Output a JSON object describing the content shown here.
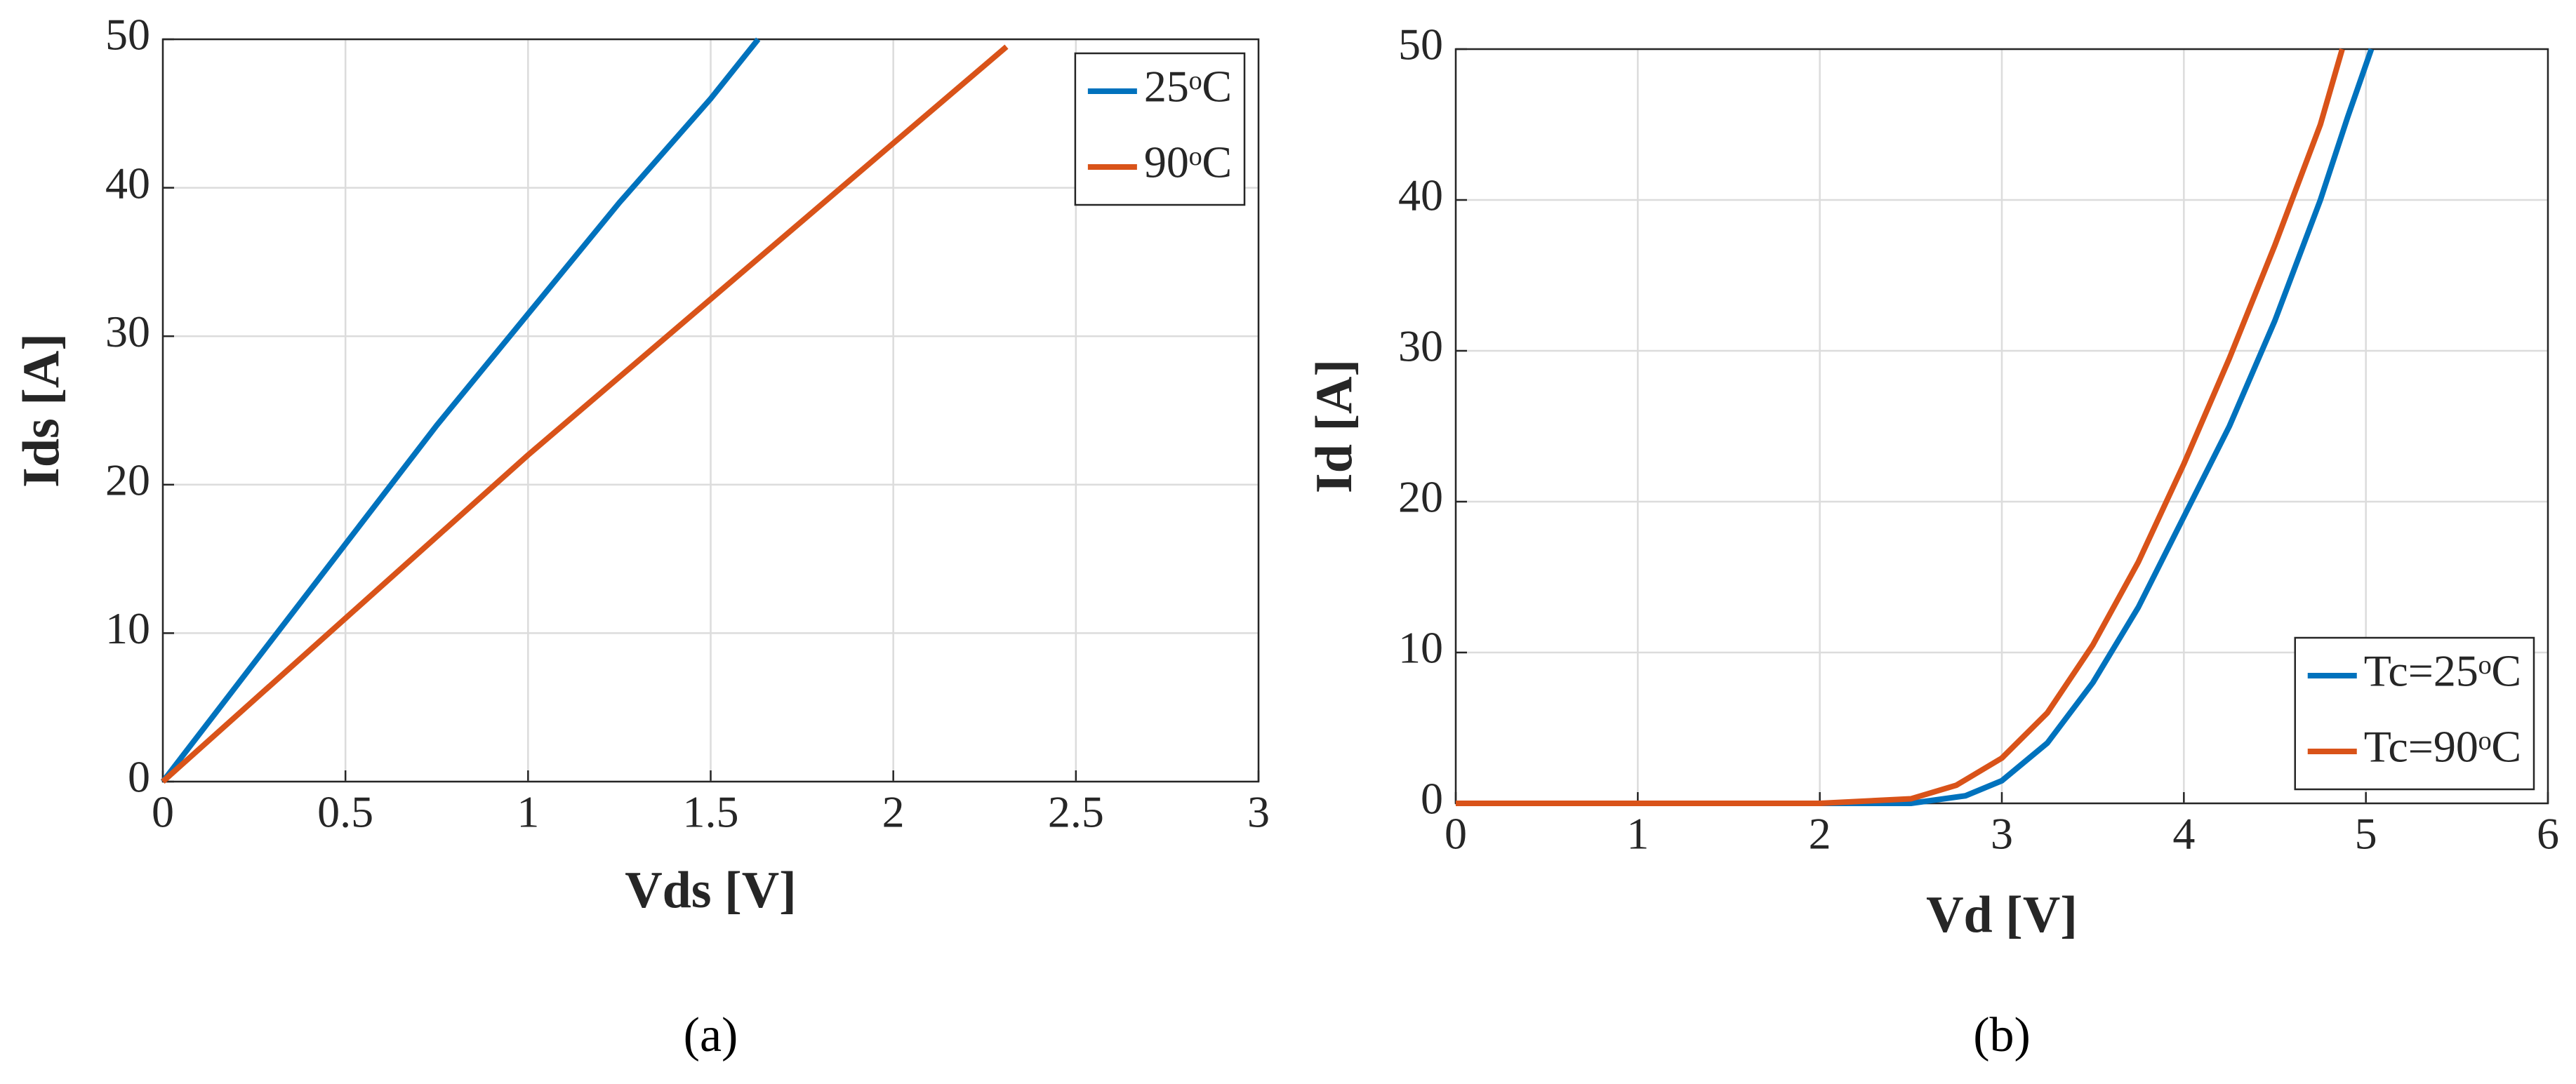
{
  "chart_data": [
    {
      "type": "line",
      "label": "(a)",
      "x_label": "Vds [V]",
      "y_label": "Ids [A]",
      "xlim": [
        0,
        3
      ],
      "xticks": [
        0,
        0.5,
        1,
        1.5,
        2,
        2.5,
        3
      ],
      "ylim": [
        0,
        50
      ],
      "yticks": [
        0,
        10,
        20,
        30,
        40,
        50
      ],
      "grid": true,
      "legend": "northeast",
      "series": [
        {
          "name": "25ᵒC",
          "color": "#0072BD",
          "x": [
            0,
            0.25,
            0.5,
            0.75,
            1,
            1.25,
            1.5,
            1.63
          ],
          "values": [
            0,
            8,
            16,
            24,
            31.5,
            39,
            46,
            50
          ]
        },
        {
          "name": "90ᵒC",
          "color": "#D95319",
          "x": [
            0,
            0.5,
            1,
            1.5,
            2,
            2.31
          ],
          "values": [
            0,
            11,
            22,
            32.5,
            43,
            49.5
          ]
        }
      ]
    },
    {
      "type": "line",
      "label": "(b)",
      "x_label": "Vd [V]",
      "y_label": "Id [A]",
      "xlim": [
        0,
        6
      ],
      "xticks": [
        0,
        1,
        2,
        3,
        4,
        5,
        6
      ],
      "ylim": [
        0,
        50
      ],
      "yticks": [
        0,
        10,
        20,
        30,
        40,
        50
      ],
      "grid": true,
      "legend": "southeast",
      "series": [
        {
          "name": "Tc=25ᵒC",
          "color": "#0072BD",
          "x": [
            0,
            1,
            2,
            2.5,
            2.8,
            3,
            3.25,
            3.5,
            3.75,
            4,
            4.25,
            4.5,
            4.75,
            4.9,
            5.03
          ],
          "values": [
            0,
            0,
            0,
            0,
            0.5,
            1.5,
            4,
            8,
            13,
            19,
            25,
            32,
            40,
            45.5,
            50
          ]
        },
        {
          "name": "Tc=90ᵒC",
          "color": "#D95319",
          "x": [
            0,
            2,
            2.5,
            2.75,
            3,
            3.25,
            3.5,
            3.75,
            4,
            4.25,
            4.5,
            4.75,
            4.87
          ],
          "values": [
            0,
            0,
            0.3,
            1.2,
            3,
            6,
            10.5,
            16,
            22.5,
            29.5,
            37,
            45,
            50
          ]
        }
      ]
    }
  ]
}
